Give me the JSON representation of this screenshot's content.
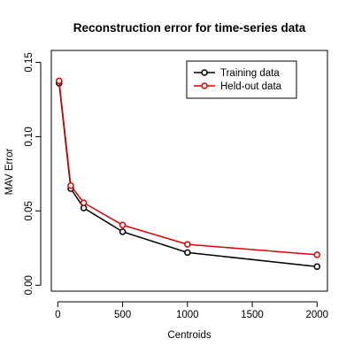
{
  "chart_data": {
    "type": "line",
    "title": "Reconstruction error for time-series data",
    "xlabel": "Centroids",
    "ylabel": "MAV Error",
    "xlim": [
      -50,
      2080
    ],
    "ylim": [
      -0.004,
      0.158
    ],
    "xticks": [
      0,
      500,
      1000,
      1500,
      2000
    ],
    "xtick_labels": [
      "0",
      "500",
      "1000",
      "1500",
      "2000"
    ],
    "yticks": [
      0.0,
      0.05,
      0.1,
      0.15
    ],
    "ytick_labels": [
      "0.00",
      "0.05",
      "0.10",
      "0.15"
    ],
    "grid": false,
    "legend_position": "top-right",
    "x": [
      10,
      100,
      200,
      500,
      1000,
      2000
    ],
    "series": [
      {
        "name": "Training data",
        "color": "#000000",
        "values": [
          0.136,
          0.065,
          0.052,
          0.036,
          0.022,
          0.0125
        ]
      },
      {
        "name": "Held-out data",
        "color": "#dd0000",
        "values": [
          0.1375,
          0.067,
          0.0555,
          0.0405,
          0.0275,
          0.0205
        ]
      }
    ]
  }
}
